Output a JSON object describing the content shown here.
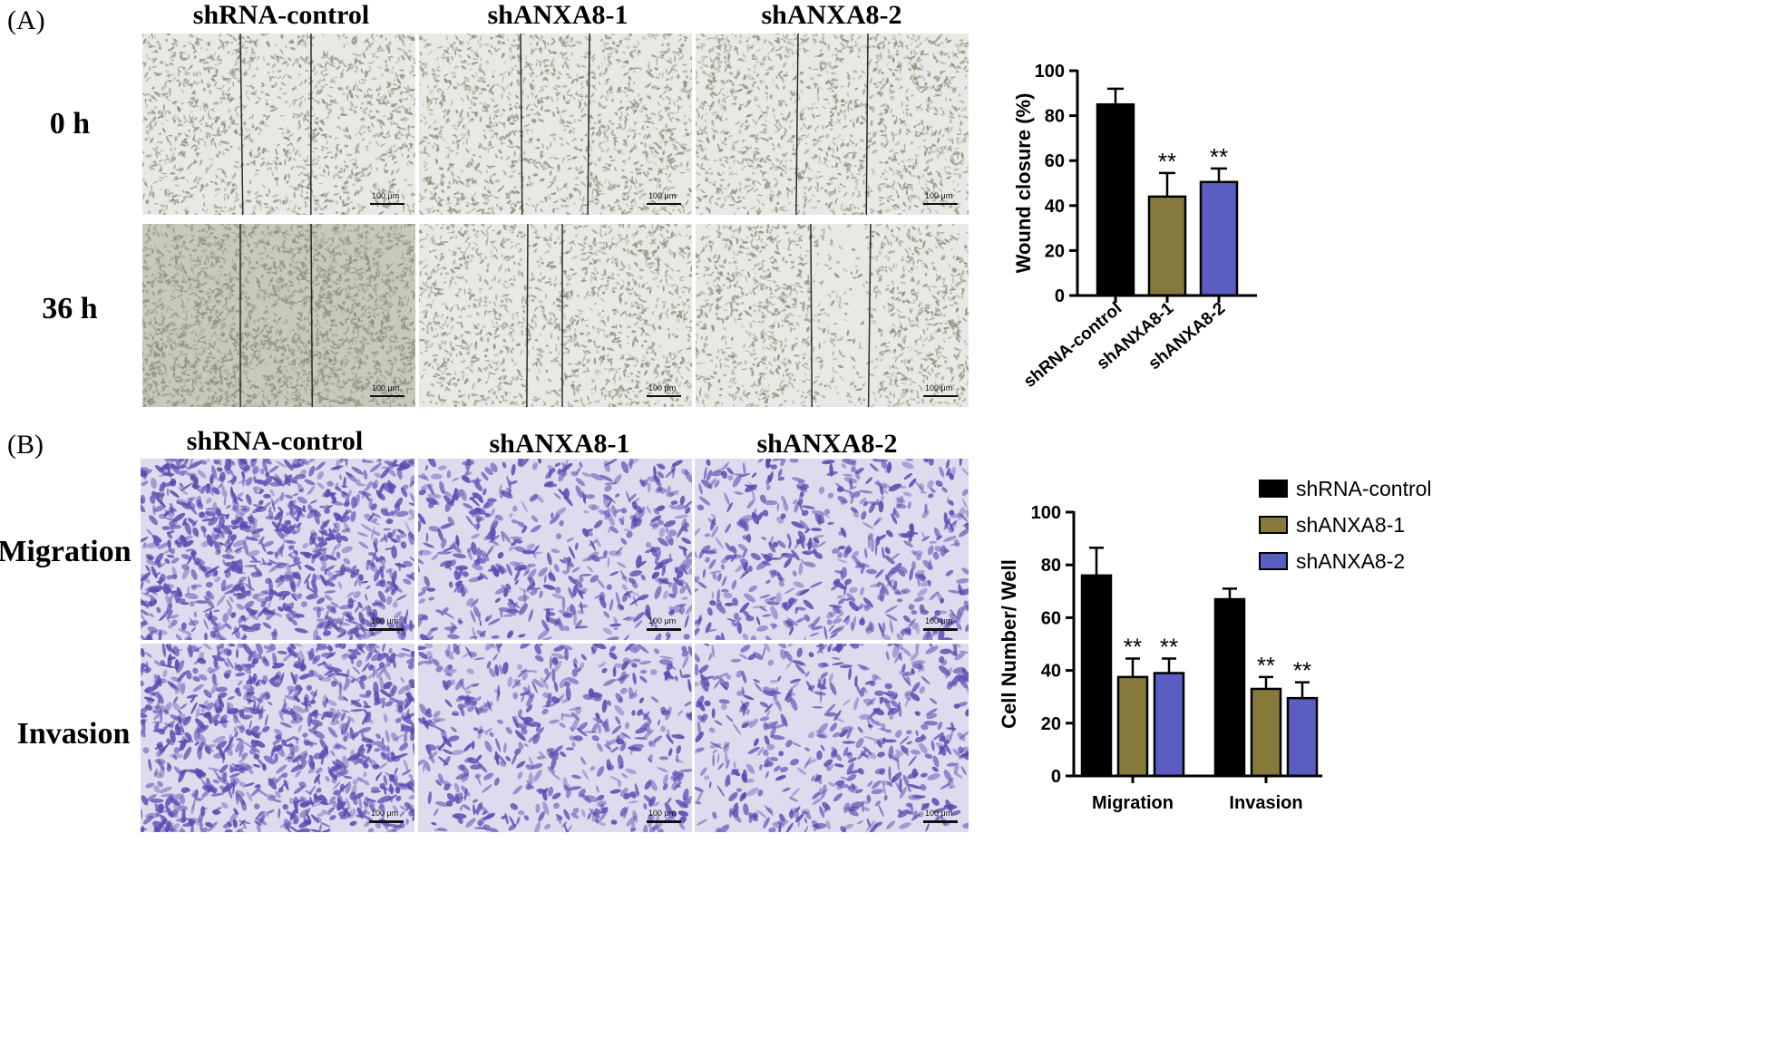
{
  "panelA": {
    "label": "(A)",
    "columns": [
      "shRNA-control",
      "shANXA8-1",
      "shANXA8-2"
    ],
    "rows": [
      "0 h",
      "36 h"
    ],
    "scale_bar": "100 μm"
  },
  "panelB": {
    "label": "(B)",
    "columns": [
      "shRNA-control",
      "shANXA8-1",
      "shANXA8-2"
    ],
    "rows": [
      "Migration",
      "Invasion"
    ],
    "scale_bar": "100 μm"
  },
  "colors": {
    "control": "#000000",
    "shANXA8_1": "#857a3c",
    "shANXA8_2": "#5a5ec2",
    "wound_bg": "#e8e8e4",
    "wound_cells": "#8e927e",
    "stain_bg": "#dcdcee",
    "stain_cells": "#5b4ab0"
  },
  "chart_data": [
    {
      "type": "bar",
      "categories": [
        "shRNA-control",
        "shANXA8-1",
        "shANXA8-2"
      ],
      "series": [
        {
          "values": [
            85,
            44,
            50.5
          ],
          "errors": [
            7,
            10.5,
            6
          ],
          "significance": [
            "",
            "**",
            "**"
          ]
        }
      ],
      "ylabel": "Wound closure (%)",
      "xlabel": "",
      "ylim": [
        0,
        100
      ],
      "yticks": [
        0,
        20,
        40,
        60,
        80,
        100
      ]
    },
    {
      "type": "bar",
      "categories": [
        "Migration",
        "Invasion"
      ],
      "series": [
        {
          "name": "shRNA-control",
          "values": [
            76,
            67
          ],
          "errors": [
            10.5,
            4
          ],
          "significance": [
            "",
            ""
          ]
        },
        {
          "name": "shANXA8-1",
          "values": [
            37.5,
            33
          ],
          "errors": [
            7,
            4.5
          ],
          "significance": [
            "**",
            "**"
          ]
        },
        {
          "name": "shANXA8-2",
          "values": [
            39,
            29.5
          ],
          "errors": [
            5.5,
            6
          ],
          "significance": [
            "**",
            "**"
          ]
        }
      ],
      "ylabel": "Cell Number/ Well",
      "xlabel": "",
      "ylim": [
        0,
        100
      ],
      "yticks": [
        0,
        20,
        40,
        60,
        80,
        100
      ],
      "legend_position": "top-right"
    }
  ]
}
